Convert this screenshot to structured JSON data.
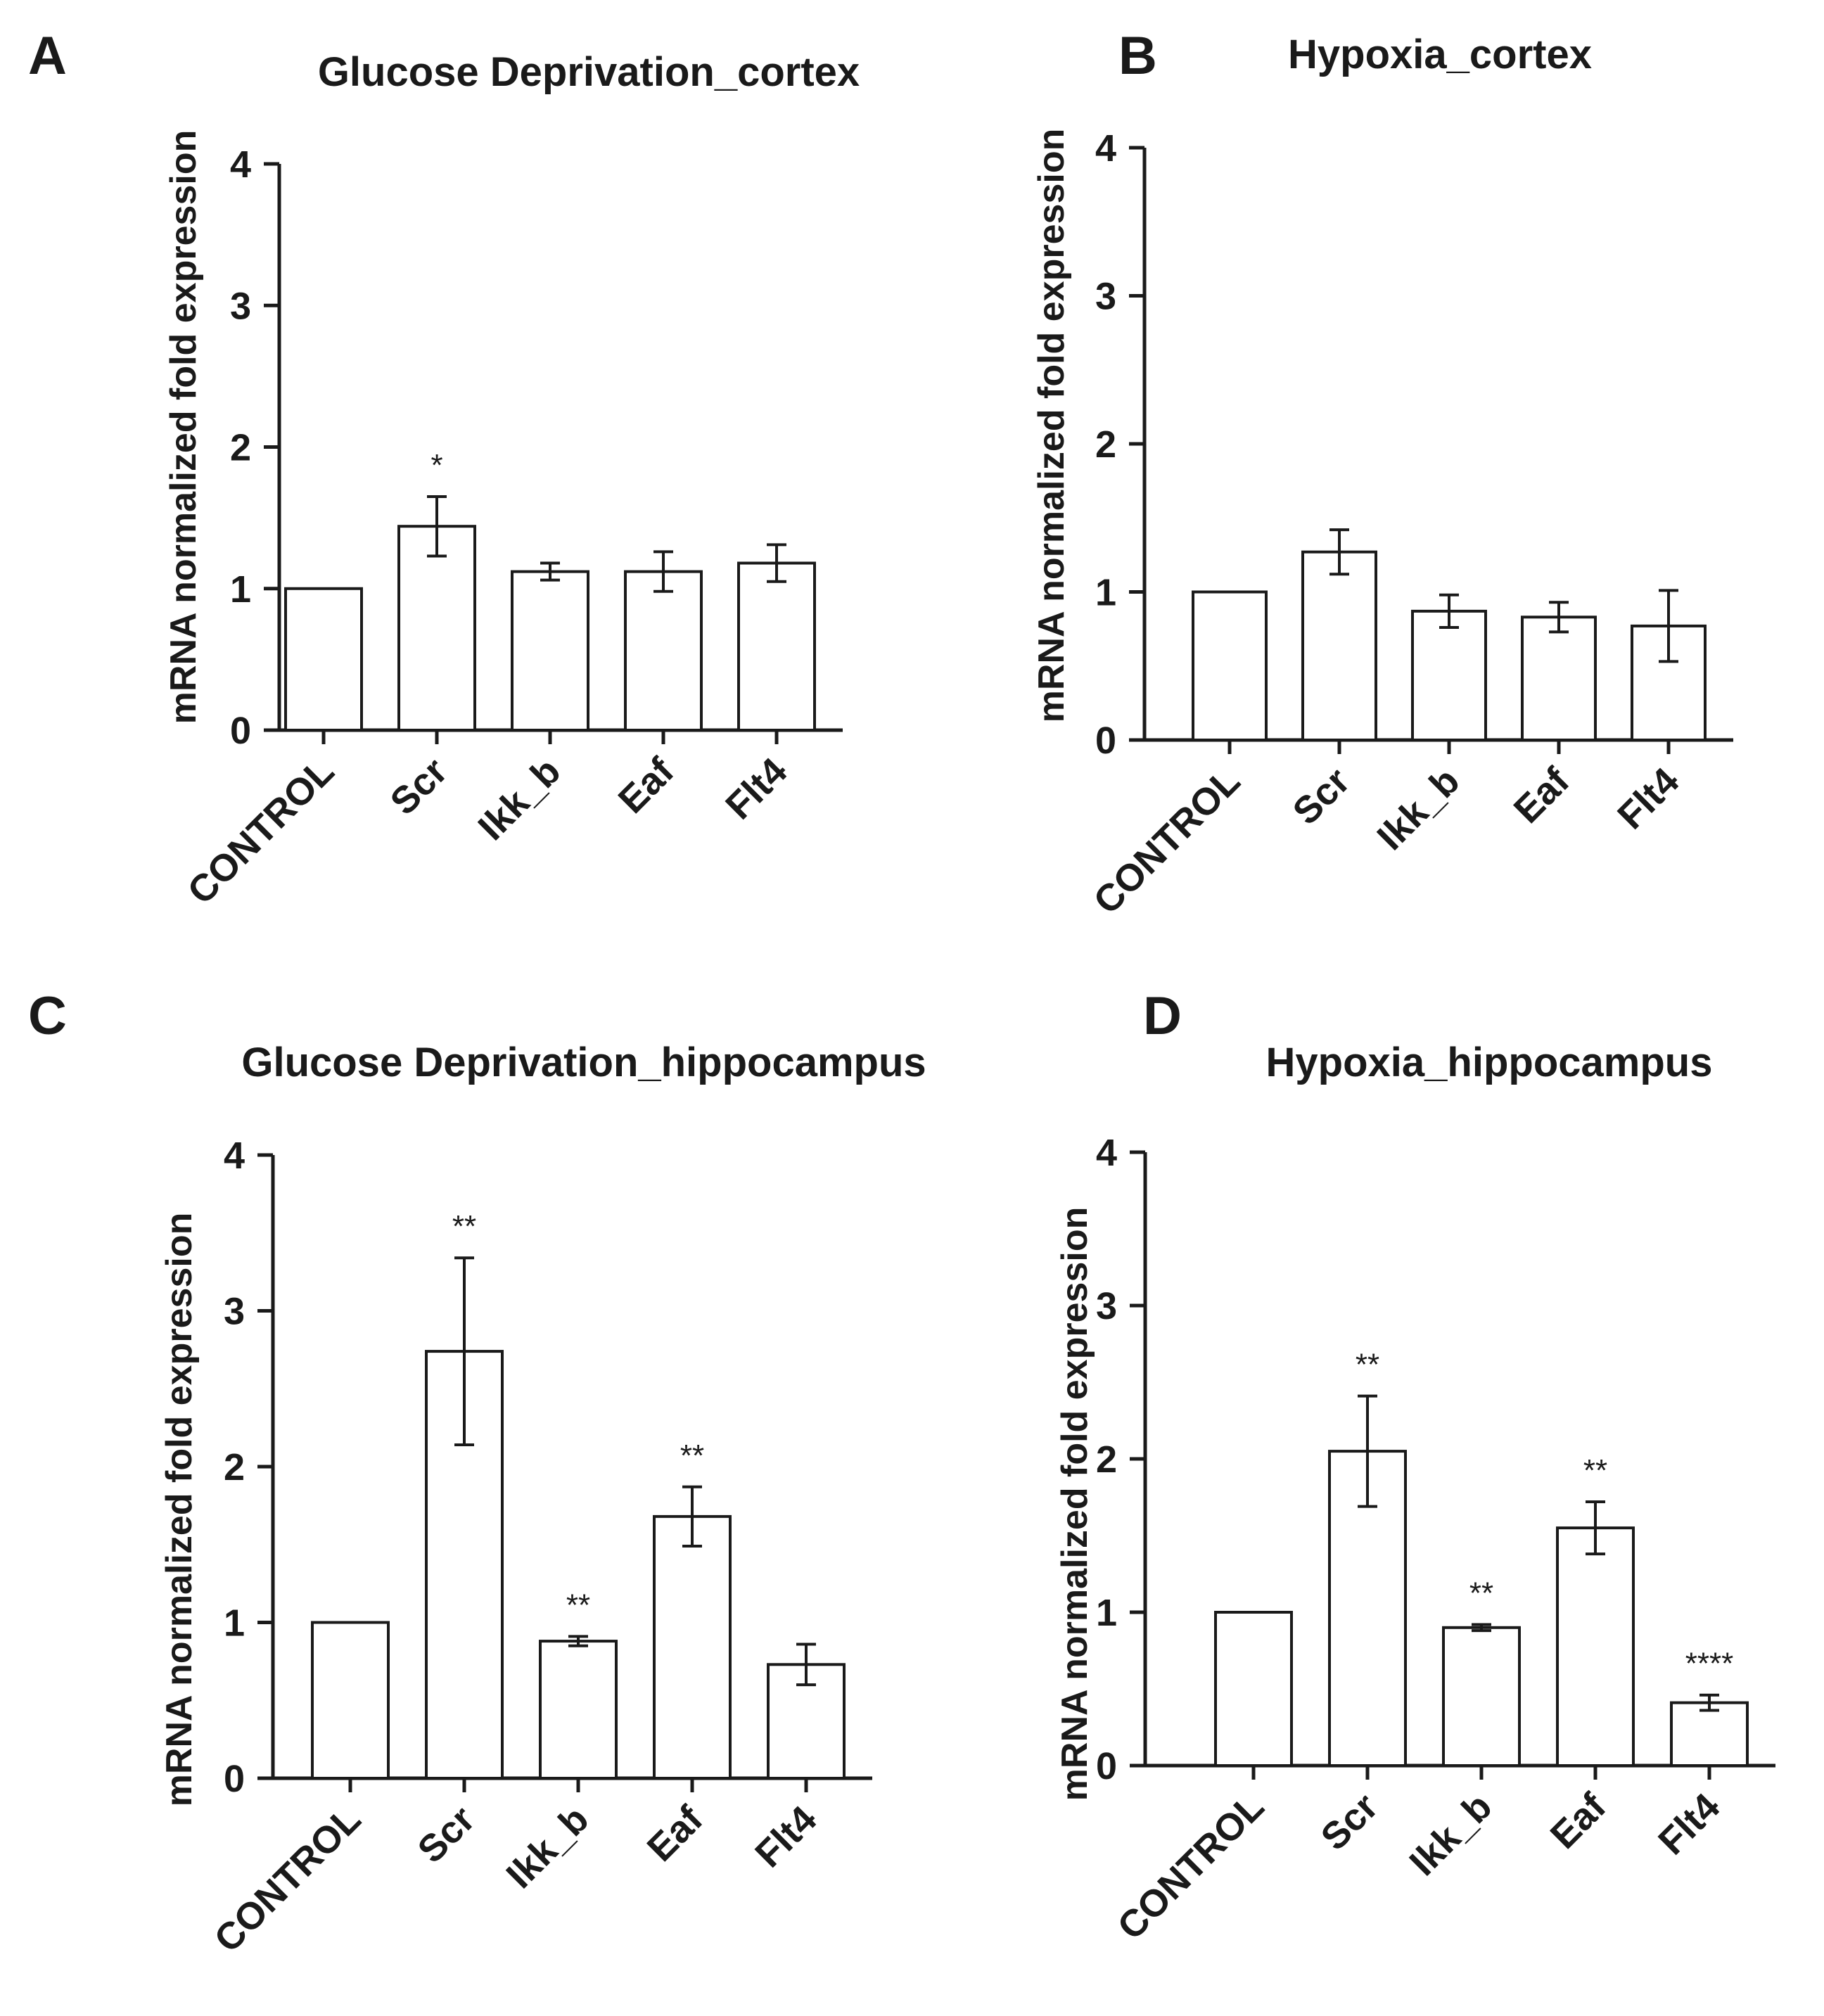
{
  "figure": {
    "panels": [
      "A",
      "B",
      "C",
      "D"
    ]
  },
  "chart_data": [
    {
      "panel": "A",
      "type": "bar",
      "title": "Glucose Deprivation_cortex",
      "xlabel": "",
      "ylabel": "mRNA normalized fold expression",
      "ylim": [
        0,
        4
      ],
      "yticks": [
        0,
        1,
        2,
        3,
        4
      ],
      "categories": [
        "CONTROL",
        "Scr",
        "Ikk_b",
        "Eaf",
        "Flt4"
      ],
      "values": [
        1.0,
        1.44,
        1.12,
        1.12,
        1.18
      ],
      "errors": [
        0,
        0.21,
        0.06,
        0.14,
        0.13
      ],
      "significance": [
        "",
        "*",
        "",
        "",
        ""
      ]
    },
    {
      "panel": "B",
      "type": "bar",
      "title": "Hypoxia_cortex",
      "xlabel": "",
      "ylabel": "mRNA normalized fold expression",
      "ylim": [
        0,
        4
      ],
      "yticks": [
        0,
        1,
        2,
        3,
        4
      ],
      "categories": [
        "CONTROL",
        "Scr",
        "Ikk_b",
        "Eaf",
        "Flt4"
      ],
      "values": [
        1.0,
        1.27,
        0.87,
        0.83,
        0.77
      ],
      "errors": [
        0,
        0.15,
        0.11,
        0.1,
        0.24
      ],
      "significance": [
        "",
        "",
        "",
        "",
        ""
      ]
    },
    {
      "panel": "C",
      "type": "bar",
      "title": "Glucose Deprivation_hippocampus",
      "xlabel": "",
      "ylabel": "mRNA normalized fold expression",
      "ylim": [
        0,
        4
      ],
      "yticks": [
        0,
        1,
        2,
        3,
        4
      ],
      "categories": [
        "CONTROL",
        "Scr",
        "Ikk_b",
        "Eaf",
        "Flt4"
      ],
      "values": [
        1.0,
        2.74,
        0.88,
        1.68,
        0.73
      ],
      "errors": [
        0,
        0.6,
        0.03,
        0.19,
        0.13
      ],
      "significance": [
        "",
        "**",
        "**",
        "**",
        ""
      ]
    },
    {
      "panel": "D",
      "type": "bar",
      "title": "Hypoxia_hippocampus",
      "xlabel": "",
      "ylabel": "mRNA normalized fold expression",
      "ylim": [
        0,
        4
      ],
      "yticks": [
        0,
        1,
        2,
        3,
        4
      ],
      "categories": [
        "CONTROL",
        "Scr",
        "Ikk_b",
        "Eaf",
        "Flt4"
      ],
      "values": [
        1.0,
        2.05,
        0.9,
        1.55,
        0.41
      ],
      "errors": [
        0,
        0.36,
        0.02,
        0.17,
        0.05
      ],
      "significance": [
        "",
        "**",
        "**",
        "**",
        "****"
      ]
    }
  ],
  "colors": {
    "ink": "#1a1a1a",
    "bar_fill": "#ffffff",
    "background": "#ffffff"
  }
}
